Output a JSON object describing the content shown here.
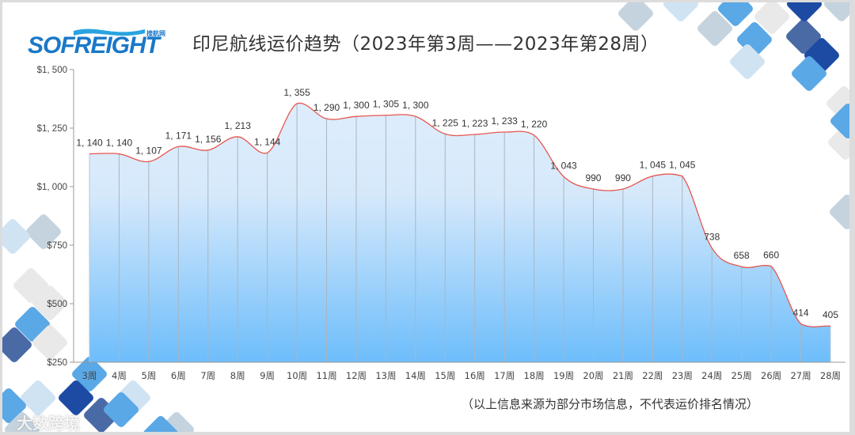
{
  "header": {
    "logo_text": "SOFREIGHT",
    "logo_subtext": "搜航网",
    "title": "印尼航线运价趋势（2023年第3周——2023年第28周）"
  },
  "footer": {
    "note": "（以上信息来源为部分市场信息，不代表运价排名情况）",
    "watermark": "大数跨境"
  },
  "colors": {
    "line": "#e8564f",
    "area_top": "#deedfc",
    "area_bottom": "#6dbdfb",
    "axis": "#999999",
    "text": "#333333",
    "deco_dark": "#1d4ba3",
    "deco_mid": "#4a6aa6",
    "deco_blue": "#5aa8e6",
    "deco_light": "#cfe3f3",
    "deco_gray": "#c5d3de",
    "deco_pale": "#e9e9e9"
  },
  "chart_data": {
    "type": "area",
    "title": "印尼航线运价趋势（2023年第3周——2023年第28周）",
    "xlabel": "",
    "ylabel": "",
    "categories": [
      "3周",
      "4周",
      "5周",
      "6周",
      "7周",
      "8周",
      "9周",
      "10周",
      "11周",
      "12周",
      "13周",
      "14周",
      "15周",
      "16周",
      "17周",
      "18周",
      "19周",
      "20周",
      "21周",
      "22周",
      "23周",
      "24周",
      "25周",
      "26周",
      "27周",
      "28周"
    ],
    "values": [
      1140,
      1140,
      1107,
      1171,
      1156,
      1213,
      1144,
      1355,
      1290,
      1300,
      1305,
      1300,
      1225,
      1223,
      1233,
      1220,
      1043,
      990,
      990,
      1045,
      1045,
      738,
      658,
      660,
      414,
      405
    ],
    "data_labels": [
      "1, 140",
      "1, 140",
      "1, 107",
      "1, 171",
      "1, 156",
      "1, 213",
      "1, 144",
      "1, 355",
      "1, 290",
      "1, 300",
      "1, 305",
      "1, 300",
      "1, 225",
      "1, 223",
      "1, 233",
      "1, 220",
      "1, 043",
      "990",
      "990",
      "1, 045",
      "1, 045",
      "738",
      "658",
      "660",
      "414",
      "405"
    ],
    "y_ticks": [
      250,
      500,
      750,
      1000,
      1250,
      1500
    ],
    "y_tick_labels": [
      "$250",
      "$500",
      "$750",
      "$1, 000",
      "$1, 250",
      "$1, 500"
    ],
    "ylim": [
      250,
      1500
    ],
    "grid": false,
    "vertical_drop_lines": true,
    "legend": null,
    "smooth": true
  }
}
